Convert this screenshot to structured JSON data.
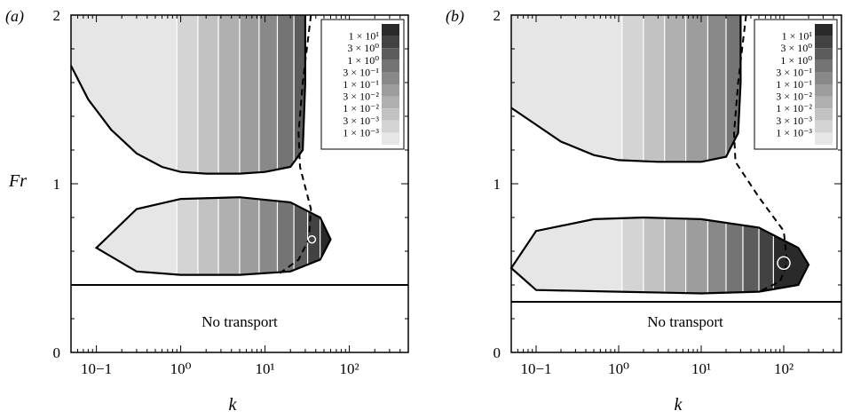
{
  "figure": {
    "ylabel": "Fr",
    "xlabel": "k"
  },
  "chart_data": [
    {
      "type": "contour",
      "panel_label": "(a)",
      "xlabel": "k",
      "ylabel": "Fr",
      "xscale": "log",
      "xlim": [
        0.05,
        500
      ],
      "ylim": [
        0,
        2
      ],
      "x_ticks": [
        "10−1",
        "10⁰",
        "10¹",
        "10²"
      ],
      "y_ticks": [
        "0",
        "1",
        "2"
      ],
      "no_transport_threshold_Fr": 0.4,
      "no_transport_label": "No transport",
      "legend_levels": [
        "1 × 10¹",
        "3 × 10⁰",
        "1 × 10⁰",
        "3 × 10⁻¹",
        "1 × 10⁻¹",
        "3 × 10⁻²",
        "1 × 10⁻²",
        "3 × 10⁻³",
        "1 × 10⁻³"
      ],
      "upper_region_boundary": {
        "x": [
          0.05,
          0.08,
          0.15,
          0.3,
          0.6,
          1.0,
          2.0,
          5.0,
          10.0,
          20.0,
          28.0,
          30.0,
          30.0
        ],
        "y": [
          1.7,
          1.5,
          1.32,
          1.18,
          1.1,
          1.07,
          1.06,
          1.06,
          1.07,
          1.1,
          1.2,
          1.6,
          2.0
        ]
      },
      "lower_region_boundary": {
        "x": [
          0.1,
          0.3,
          1.0,
          5.0,
          20.0,
          45.0,
          60.0,
          45.0,
          20.0,
          5.0,
          1.0,
          0.3,
          0.1
        ],
        "y": [
          0.62,
          0.85,
          0.91,
          0.92,
          0.89,
          0.8,
          0.67,
          0.55,
          0.48,
          0.46,
          0.46,
          0.48,
          0.62
        ]
      },
      "dashed_curve": {
        "x": [
          35.0,
          28.0,
          25.0,
          26.0,
          35.0,
          33.0,
          25.0,
          15.0
        ],
        "y": [
          2.0,
          1.6,
          1.3,
          1.1,
          0.85,
          0.67,
          0.55,
          0.47
        ]
      },
      "peak": {
        "x": 36,
        "y": 0.67
      }
    },
    {
      "type": "contour",
      "panel_label": "(b)",
      "xlabel": "k",
      "ylabel": "",
      "xscale": "log",
      "xlim": [
        0.05,
        500
      ],
      "ylim": [
        0,
        2
      ],
      "x_ticks": [
        "10−1",
        "10⁰",
        "10¹",
        "10²"
      ],
      "y_ticks": [
        "0",
        "1",
        "2"
      ],
      "no_transport_threshold_Fr": 0.3,
      "no_transport_label": "No transport",
      "legend_levels": [
        "1 × 10¹",
        "3 × 10⁰",
        "1 × 10⁰",
        "3 × 10⁻¹",
        "1 × 10⁻¹",
        "3 × 10⁻²",
        "1 × 10⁻²",
        "3 × 10⁻³",
        "1 × 10⁻³"
      ],
      "upper_region_boundary": {
        "x": [
          0.05,
          0.1,
          0.2,
          0.5,
          1.0,
          3.0,
          10.0,
          20.0,
          28.0,
          30.0,
          30.0
        ],
        "y": [
          1.45,
          1.35,
          1.25,
          1.17,
          1.14,
          1.13,
          1.13,
          1.16,
          1.3,
          1.6,
          2.0
        ]
      },
      "lower_region_boundary": {
        "x": [
          0.05,
          0.1,
          0.5,
          2.0,
          10.0,
          50.0,
          150.0,
          200.0,
          150.0,
          50.0,
          10.0,
          1.0,
          0.1,
          0.05
        ],
        "y": [
          0.5,
          0.72,
          0.79,
          0.8,
          0.79,
          0.74,
          0.62,
          0.52,
          0.4,
          0.36,
          0.35,
          0.36,
          0.37,
          0.5
        ]
      },
      "dashed_curve": {
        "x": [
          35.0,
          28.0,
          25.0,
          26.0,
          50.0,
          100.0,
          110.0,
          90.0,
          50.0
        ],
        "y": [
          2.0,
          1.6,
          1.3,
          1.13,
          0.92,
          0.72,
          0.53,
          0.42,
          0.36
        ]
      },
      "peak": {
        "x": 100,
        "y": 0.53
      }
    }
  ],
  "colors": {
    "band_greys": [
      "#e6e6e6",
      "#d4d4d4",
      "#c2c2c2",
      "#b0b0b0",
      "#9d9d9d",
      "#898989",
      "#747474",
      "#5c5c5c",
      "#424242",
      "#2a2a2a"
    ],
    "contour_line": "#ffffff",
    "boundary": "#000000"
  }
}
